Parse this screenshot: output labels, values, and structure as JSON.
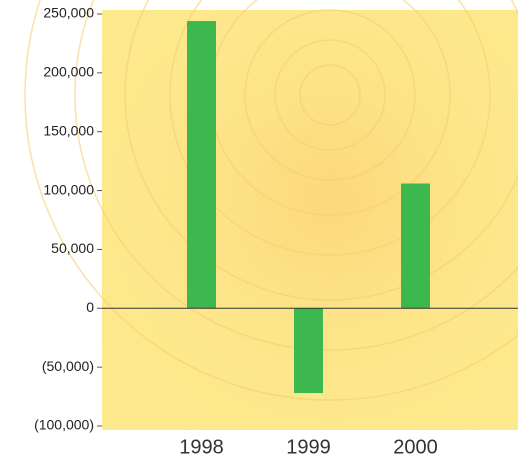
{
  "chart_data": {
    "type": "bar",
    "categories": [
      "1998",
      "1999",
      "2000"
    ],
    "values": [
      244000,
      -72000,
      106000
    ],
    "color": "#3cb84e",
    "ylim": [
      -100000,
      250000
    ],
    "yticks": [
      {
        "value": -100000,
        "label": "(100,000)"
      },
      {
        "value": -50000,
        "label": "(50,000)"
      },
      0,
      {
        "value": 50000,
        "label": "50,000"
      },
      {
        "value": 100000,
        "label": "100,000"
      },
      {
        "value": 150000,
        "label": "150,000"
      },
      {
        "value": 200000,
        "label": "200,000"
      },
      {
        "value": 250000,
        "label": "250,000"
      }
    ]
  }
}
